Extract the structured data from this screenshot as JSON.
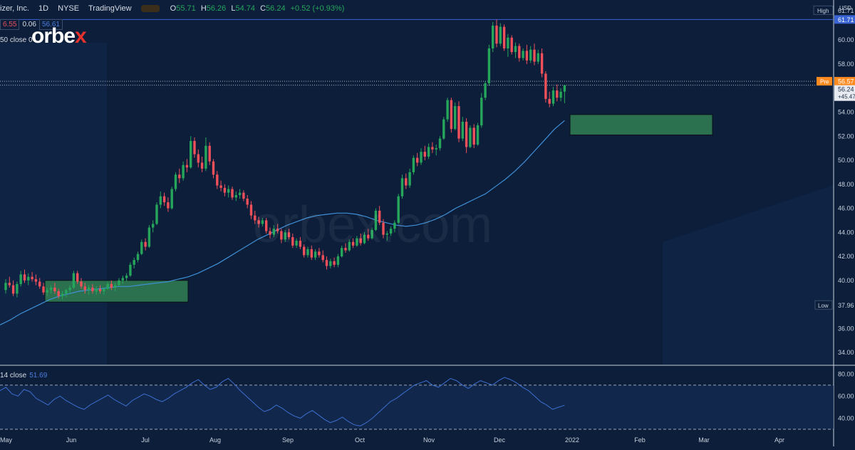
{
  "header": {
    "symbol": "izer, Inc.",
    "interval": "1D",
    "exchange": "NYSE",
    "source": "TradingView",
    "ohlc": {
      "o_label": "O",
      "o": "55.71",
      "h_label": "H",
      "h": "56.26",
      "l_label": "L",
      "l": "54.74",
      "c_label": "C",
      "c": "56.24",
      "chg": "+0.52 (+0.93%)"
    },
    "sell": "6.55",
    "spread": "0.06",
    "buy": "56.61",
    "ma_label": "50 close 0"
  },
  "logo": {
    "text_a": "orbe",
    "text_b": "x"
  },
  "watermark": "orbex.com",
  "currency": "USD",
  "rsi_label": "14 close",
  "rsi_value": "51.69",
  "price_tags": {
    "high_label": "High",
    "high": "61.71",
    "high2": "61.71",
    "pre_label": "Pre",
    "pre": "56.57",
    "last": "56.24",
    "last_sub": "+45.47",
    "low_label": "Low",
    "low": "37.96"
  },
  "colors": {
    "bg": "#0c1e3a",
    "up": "#26a65b",
    "down": "#f0505a",
    "ma": "#3f8fd6",
    "zone": "#2f7a52",
    "hline": "#3a63d4",
    "pre": "#ff8a1f"
  },
  "chart_data": {
    "type": "candlestick",
    "y_ticks": [
      "61.71",
      "60.00",
      "58.00",
      "56.57",
      "56.24",
      "54.00",
      "52.00",
      "50.00",
      "48.00",
      "46.00",
      "44.00",
      "42.00",
      "40.00",
      "37.96",
      "36.00",
      "34.00"
    ],
    "ylim": [
      33,
      62.5
    ],
    "x_ticks": [
      "May",
      "Jun",
      "Jul",
      "Aug",
      "Sep",
      "Oct",
      "Nov",
      "Dec",
      "2022",
      "Feb",
      "Mar",
      "Apr"
    ],
    "candles": [
      [
        39.2,
        40.1,
        38.9,
        39.8
      ],
      [
        39.8,
        40.3,
        39.4,
        39.6
      ],
      [
        39.6,
        40.0,
        38.7,
        38.9
      ],
      [
        38.9,
        39.9,
        38.6,
        39.7
      ],
      [
        39.7,
        40.8,
        39.5,
        40.5
      ],
      [
        40.5,
        40.9,
        39.8,
        40.0
      ],
      [
        40.0,
        40.6,
        39.6,
        40.3
      ],
      [
        40.3,
        40.7,
        39.9,
        40.1
      ],
      [
        40.1,
        40.5,
        39.6,
        39.9
      ],
      [
        39.9,
        40.2,
        39.3,
        39.5
      ],
      [
        39.5,
        39.8,
        38.8,
        39.0
      ],
      [
        39.0,
        39.4,
        38.7,
        39.2
      ],
      [
        39.2,
        39.6,
        38.9,
        39.4
      ],
      [
        39.4,
        39.8,
        38.9,
        39.1
      ],
      [
        39.1,
        39.3,
        38.5,
        38.7
      ],
      [
        38.7,
        39.1,
        38.4,
        38.9
      ],
      [
        38.9,
        39.3,
        38.6,
        39.2
      ],
      [
        39.2,
        39.6,
        38.9,
        39.4
      ],
      [
        39.4,
        40.8,
        39.3,
        40.6
      ],
      [
        40.6,
        40.8,
        39.7,
        39.9
      ],
      [
        39.9,
        40.2,
        39.3,
        39.5
      ],
      [
        39.5,
        39.8,
        38.9,
        39.2
      ],
      [
        39.2,
        39.6,
        38.8,
        39.4
      ],
      [
        39.4,
        39.7,
        38.9,
        39.1
      ],
      [
        39.1,
        39.5,
        38.8,
        39.3
      ],
      [
        39.3,
        39.6,
        38.9,
        39.1
      ],
      [
        39.1,
        39.4,
        38.8,
        39.3
      ],
      [
        39.3,
        39.9,
        39.2,
        39.7
      ],
      [
        39.7,
        40.0,
        39.2,
        39.4
      ],
      [
        39.4,
        39.8,
        39.1,
        39.6
      ],
      [
        39.6,
        40.2,
        39.5,
        40.0
      ],
      [
        40.0,
        40.4,
        39.7,
        40.2
      ],
      [
        40.2,
        40.6,
        39.9,
        40.4
      ],
      [
        40.4,
        41.5,
        40.3,
        41.3
      ],
      [
        41.3,
        41.9,
        41.0,
        41.7
      ],
      [
        41.7,
        42.4,
        41.5,
        42.2
      ],
      [
        42.2,
        43.4,
        42.1,
        43.2
      ],
      [
        43.2,
        43.5,
        42.5,
        42.8
      ],
      [
        42.8,
        44.6,
        42.7,
        44.4
      ],
      [
        44.4,
        45.0,
        44.0,
        44.7
      ],
      [
        44.7,
        46.5,
        44.6,
        46.3
      ],
      [
        46.3,
        47.4,
        46.0,
        47.0
      ],
      [
        47.0,
        47.3,
        46.2,
        46.5
      ],
      [
        46.5,
        46.9,
        45.7,
        46.0
      ],
      [
        46.0,
        47.8,
        45.9,
        47.6
      ],
      [
        47.6,
        49.0,
        47.4,
        48.8
      ],
      [
        48.8,
        49.3,
        48.1,
        48.5
      ],
      [
        48.5,
        49.9,
        48.3,
        49.6
      ],
      [
        49.6,
        50.1,
        49.0,
        49.4
      ],
      [
        49.4,
        52.0,
        49.3,
        51.6
      ],
      [
        51.6,
        51.9,
        50.2,
        50.5
      ],
      [
        50.5,
        50.9,
        49.4,
        49.8
      ],
      [
        49.8,
        50.3,
        49.0,
        49.3
      ],
      [
        49.3,
        51.9,
        49.1,
        51.2
      ],
      [
        51.2,
        51.5,
        49.6,
        49.9
      ],
      [
        49.9,
        50.1,
        48.5,
        48.8
      ],
      [
        48.8,
        49.1,
        47.6,
        47.9
      ],
      [
        47.9,
        48.3,
        47.4,
        47.7
      ],
      [
        47.7,
        48.0,
        47.0,
        47.3
      ],
      [
        47.3,
        47.9,
        46.9,
        47.6
      ],
      [
        47.6,
        47.8,
        46.7,
        46.9
      ],
      [
        46.9,
        47.4,
        46.6,
        47.1
      ],
      [
        47.1,
        47.6,
        46.8,
        47.3
      ],
      [
        47.3,
        47.5,
        46.6,
        46.8
      ],
      [
        46.8,
        47.1,
        46.0,
        46.3
      ],
      [
        46.3,
        46.6,
        45.1,
        45.4
      ],
      [
        45.4,
        45.8,
        44.7,
        45.0
      ],
      [
        45.0,
        45.3,
        44.4,
        44.7
      ],
      [
        44.7,
        45.2,
        44.5,
        45.0
      ],
      [
        45.0,
        45.2,
        43.9,
        44.1
      ],
      [
        44.1,
        44.4,
        43.5,
        43.8
      ],
      [
        43.8,
        44.6,
        43.6,
        44.3
      ],
      [
        44.3,
        44.7,
        43.9,
        44.1
      ],
      [
        44.1,
        44.3,
        43.1,
        43.4
      ],
      [
        43.4,
        44.2,
        43.2,
        44.0
      ],
      [
        44.0,
        44.3,
        43.4,
        43.6
      ],
      [
        43.6,
        43.9,
        42.7,
        42.9
      ],
      [
        42.9,
        43.5,
        42.7,
        43.3
      ],
      [
        43.3,
        43.6,
        42.6,
        42.8
      ],
      [
        42.8,
        43.0,
        41.9,
        42.1
      ],
      [
        42.1,
        42.8,
        41.9,
        42.6
      ],
      [
        42.6,
        42.9,
        41.7,
        41.9
      ],
      [
        41.9,
        42.6,
        41.7,
        42.4
      ],
      [
        42.4,
        42.7,
        41.9,
        42.1
      ],
      [
        42.1,
        42.5,
        41.5,
        41.7
      ],
      [
        41.7,
        42.0,
        40.9,
        41.2
      ],
      [
        41.2,
        41.8,
        41.0,
        41.6
      ],
      [
        41.6,
        41.9,
        41.1,
        41.3
      ],
      [
        41.3,
        42.2,
        41.1,
        42.0
      ],
      [
        42.0,
        42.9,
        41.9,
        42.7
      ],
      [
        42.7,
        43.1,
        42.3,
        42.5
      ],
      [
        42.5,
        43.4,
        42.4,
        43.2
      ],
      [
        43.2,
        43.5,
        42.7,
        42.9
      ],
      [
        42.9,
        43.7,
        42.8,
        43.5
      ],
      [
        43.5,
        43.9,
        42.9,
        43.1
      ],
      [
        43.1,
        44.0,
        43.0,
        43.8
      ],
      [
        43.8,
        44.3,
        43.3,
        43.5
      ],
      [
        43.5,
        44.4,
        43.4,
        44.2
      ],
      [
        44.2,
        46.0,
        44.1,
        45.8
      ],
      [
        45.8,
        46.2,
        44.6,
        44.8
      ],
      [
        44.8,
        45.1,
        43.5,
        43.8
      ],
      [
        43.8,
        44.1,
        43.3,
        43.9
      ],
      [
        43.9,
        44.5,
        43.7,
        44.3
      ],
      [
        44.3,
        45.0,
        44.0,
        44.8
      ],
      [
        44.8,
        47.2,
        44.7,
        47.0
      ],
      [
        47.0,
        48.8,
        46.8,
        48.5
      ],
      [
        48.5,
        48.9,
        47.6,
        47.9
      ],
      [
        47.9,
        49.3,
        47.7,
        49.0
      ],
      [
        49.0,
        50.4,
        48.8,
        50.2
      ],
      [
        50.2,
        50.6,
        49.5,
        49.8
      ],
      [
        49.8,
        51.0,
        49.6,
        50.7
      ],
      [
        50.7,
        51.2,
        50.0,
        50.3
      ],
      [
        50.3,
        51.4,
        50.1,
        51.1
      ],
      [
        51.1,
        51.5,
        50.6,
        50.9
      ],
      [
        50.9,
        51.3,
        50.4,
        51.0
      ],
      [
        51.0,
        52.0,
        50.8,
        51.8
      ],
      [
        51.8,
        53.6,
        51.7,
        53.4
      ],
      [
        53.4,
        55.2,
        53.2,
        55.0
      ],
      [
        55.0,
        55.2,
        52.3,
        52.6
      ],
      [
        52.6,
        54.8,
        52.5,
        54.5
      ],
      [
        54.5,
        54.9,
        51.5,
        51.8
      ],
      [
        51.8,
        53.6,
        51.6,
        53.2
      ],
      [
        53.2,
        53.5,
        50.6,
        51.1
      ],
      [
        51.1,
        52.9,
        51.0,
        52.7
      ],
      [
        52.7,
        53.0,
        51.0,
        51.3
      ],
      [
        51.3,
        53.1,
        51.2,
        52.9
      ],
      [
        52.9,
        55.6,
        52.7,
        55.2
      ],
      [
        55.2,
        56.6,
        55.0,
        56.4
      ],
      [
        56.4,
        59.6,
        56.2,
        59.3
      ],
      [
        59.3,
        61.5,
        59.0,
        61.2
      ],
      [
        61.2,
        61.7,
        59.4,
        59.7
      ],
      [
        59.7,
        61.4,
        59.5,
        61.1
      ],
      [
        61.1,
        61.3,
        59.1,
        59.3
      ],
      [
        59.3,
        60.5,
        58.6,
        60.2
      ],
      [
        60.2,
        60.4,
        58.8,
        59.0
      ],
      [
        59.0,
        59.8,
        58.5,
        59.5
      ],
      [
        59.5,
        59.7,
        58.2,
        58.5
      ],
      [
        58.5,
        59.3,
        58.3,
        59.1
      ],
      [
        59.1,
        59.6,
        58.0,
        58.3
      ],
      [
        58.3,
        59.5,
        58.1,
        59.2
      ],
      [
        59.2,
        59.7,
        57.9,
        58.2
      ],
      [
        58.2,
        59.2,
        58.0,
        58.9
      ],
      [
        58.9,
        59.3,
        56.9,
        57.2
      ],
      [
        57.2,
        57.4,
        54.8,
        55.1
      ],
      [
        55.1,
        55.7,
        54.4,
        54.7
      ],
      [
        54.7,
        56.1,
        54.5,
        55.8
      ],
      [
        55.8,
        56.3,
        54.9,
        55.2
      ],
      [
        55.2,
        56.0,
        54.9,
        55.7
      ],
      [
        55.71,
        56.26,
        54.74,
        56.24
      ]
    ],
    "ma50": [
      36.3,
      36.7,
      37.2,
      37.6,
      38.0,
      38.4,
      38.7,
      38.9,
      39.1,
      39.2,
      39.3,
      39.4,
      39.5,
      39.5,
      39.6,
      39.7,
      39.8,
      39.9,
      40.1,
      40.3,
      40.6,
      41.0,
      41.4,
      41.9,
      42.4,
      42.9,
      43.4,
      43.8,
      44.2,
      44.6,
      44.9,
      45.2,
      45.4,
      45.5,
      45.6,
      45.6,
      45.5,
      45.3,
      45.0,
      44.8,
      44.6,
      44.5,
      44.6,
      44.8,
      45.1,
      45.5,
      46.0,
      46.4,
      46.8,
      47.2,
      47.8,
      48.4,
      49.1,
      49.9,
      50.8,
      51.7,
      52.6,
      53.3
    ],
    "zones": [
      {
        "y_top": 40.0,
        "y_bottom": 38.2
      },
      {
        "y_top": 53.8,
        "y_bottom": 52.1
      }
    ],
    "rsi_ticks": [
      "80.00",
      "60.00",
      "40.00"
    ],
    "rsi_ylim": [
      28,
      86
    ],
    "rsi_levels": [
      70,
      30
    ],
    "rsi": [
      65,
      68,
      62,
      60,
      66,
      64,
      58,
      55,
      52,
      57,
      60,
      56,
      53,
      50,
      48,
      52,
      55,
      58,
      61,
      57,
      54,
      51,
      56,
      59,
      62,
      60,
      57,
      55,
      58,
      62,
      65,
      68,
      72,
      75,
      70,
      66,
      68,
      73,
      76,
      71,
      65,
      60,
      55,
      50,
      46,
      48,
      52,
      49,
      45,
      42,
      40,
      44,
      47,
      43,
      39,
      36,
      38,
      41,
      37,
      34,
      33,
      36,
      40,
      45,
      50,
      55,
      58,
      62,
      66,
      70,
      72,
      74,
      70,
      68,
      72,
      76,
      74,
      70,
      67,
      71,
      74,
      72,
      70,
      74,
      77,
      75,
      72,
      68,
      65,
      60,
      55,
      52,
      48,
      50,
      51.69
    ]
  }
}
